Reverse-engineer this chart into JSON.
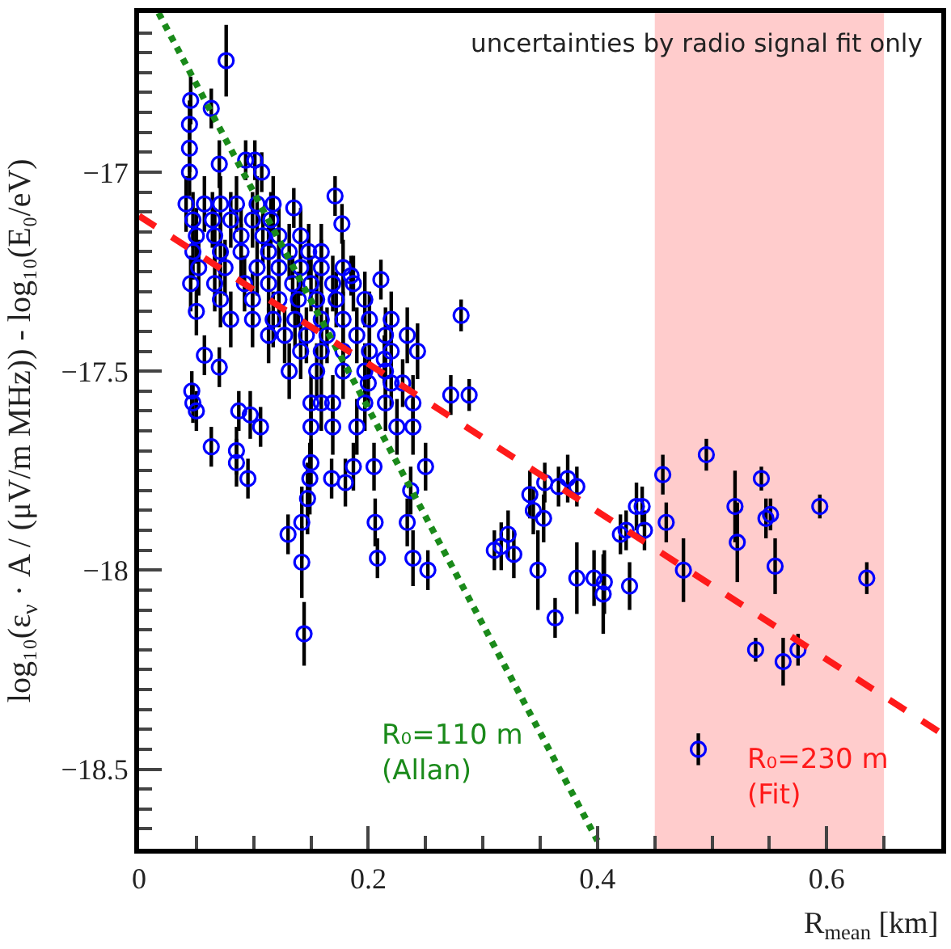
{
  "chart_data": {
    "type": "scatter",
    "xlabel": "R$_{mean}$ [km]",
    "ylabel": "log₁₀(ε$_{ν}$ · A / (μV/m MHz)) - log₁₀(E₀/eV)",
    "annotations": [
      "uncertainties by radio signal fit only"
    ],
    "xlim": [
      0,
      0.7
    ],
    "xticks": [
      0,
      0.2,
      0.4,
      0.6
    ],
    "ylim": [
      -18.7,
      -16.6
    ],
    "yticks": [
      {
        "value": -17,
        "label": "−17"
      },
      {
        "value": -17.5,
        "label": "−17.5"
      },
      {
        "value": -18,
        "label": "−18"
      },
      {
        "value": -18.5,
        "label": "−18.5"
      }
    ],
    "grid": false,
    "bands": [
      {
        "axis": "x",
        "from": 0.45,
        "to": 0.65,
        "color": "#ffcccc"
      }
    ],
    "series": [
      {
        "color": "#0000ff",
        "marker": "circle",
        "x": [
          0.076,
          0.045,
          0.063,
          0.044,
          0.044,
          0.044,
          0.07,
          0.093,
          0.101,
          0.107,
          0.171,
          0.177,
          0.135,
          0.281,
          0.185,
          0.211,
          0.05,
          0.057,
          0.07,
          0.046,
          0.047,
          0.05,
          0.087,
          0.097,
          0.106,
          0.063,
          0.085,
          0.15,
          0.25,
          0.288,
          0.272,
          0.2,
          0.22,
          0.23,
          0.214,
          0.085,
          0.095,
          0.149,
          0.147,
          0.142,
          0.13,
          0.142,
          0.144,
          0.168,
          0.18,
          0.187,
          0.205,
          0.206,
          0.208,
          0.234,
          0.237,
          0.239,
          0.252,
          0.341,
          0.344,
          0.353,
          0.348,
          0.363,
          0.354,
          0.366,
          0.374,
          0.382,
          0.31,
          0.316,
          0.322,
          0.327,
          0.382,
          0.397,
          0.405,
          0.406,
          0.428,
          0.42,
          0.425,
          0.434,
          0.439,
          0.441,
          0.457,
          0.46,
          0.475,
          0.495,
          0.488,
          0.52,
          0.522,
          0.543,
          0.547,
          0.551,
          0.555,
          0.538,
          0.562,
          0.575,
          0.594,
          0.635,
          0.041,
          0.057,
          0.071,
          0.085,
          0.103,
          0.117,
          0.047,
          0.064,
          0.08,
          0.099,
          0.115,
          0.05,
          0.066,
          0.089,
          0.108,
          0.122,
          0.141,
          0.047,
          0.071,
          0.089,
          0.113,
          0.131,
          0.148,
          0.159,
          0.052,
          0.075,
          0.103,
          0.122,
          0.141,
          0.159,
          0.178,
          0.045,
          0.066,
          0.092,
          0.113,
          0.134,
          0.15,
          0.169,
          0.187,
          0.071,
          0.099,
          0.122,
          0.139,
          0.155,
          0.172,
          0.197,
          0.08,
          0.099,
          0.117,
          0.136,
          0.159,
          0.178,
          0.201,
          0.22,
          0.113,
          0.127,
          0.146,
          0.164,
          0.19,
          0.215,
          0.234,
          0.141,
          0.159,
          0.178,
          0.201,
          0.22,
          0.243,
          0.131,
          0.155,
          0.178,
          0.197,
          0.215,
          0.15,
          0.159,
          0.169,
          0.197,
          0.215,
          0.239,
          0.15,
          0.169,
          0.19,
          0.225,
          0.239
        ],
        "values": [
          -16.72,
          -16.82,
          -16.84,
          -16.88,
          -16.94,
          -17.0,
          -16.98,
          -16.97,
          -16.97,
          -17.0,
          -17.06,
          -17.13,
          -17.09,
          -17.36,
          -17.26,
          -17.27,
          -17.35,
          -17.46,
          -17.49,
          -17.55,
          -17.58,
          -17.6,
          -17.6,
          -17.61,
          -17.64,
          -17.69,
          -17.7,
          -17.73,
          -17.74,
          -17.56,
          -17.56,
          -17.53,
          -17.53,
          -17.53,
          -17.47,
          -17.73,
          -17.77,
          -17.77,
          -17.82,
          -17.88,
          -17.91,
          -17.98,
          -18.16,
          -17.77,
          -17.78,
          -17.74,
          -17.74,
          -17.88,
          -17.97,
          -17.88,
          -17.8,
          -17.97,
          -18.0,
          -17.81,
          -17.85,
          -17.87,
          -18.0,
          -18.12,
          -17.78,
          -17.79,
          -17.77,
          -17.79,
          -17.95,
          -17.94,
          -17.91,
          -17.96,
          -18.02,
          -18.02,
          -18.06,
          -18.03,
          -18.04,
          -17.91,
          -17.9,
          -17.84,
          -17.84,
          -17.9,
          -17.76,
          -17.88,
          -18.0,
          -17.71,
          -18.45,
          -17.84,
          -17.93,
          -17.77,
          -17.87,
          -17.86,
          -17.99,
          -18.2,
          -18.23,
          -18.2,
          -17.84,
          -18.02,
          -17.08,
          -17.08,
          -17.08,
          -17.08,
          -17.08,
          -17.08,
          -17.12,
          -17.12,
          -17.12,
          -17.12,
          -17.12,
          -17.16,
          -17.16,
          -17.16,
          -17.16,
          -17.16,
          -17.16,
          -17.2,
          -17.2,
          -17.2,
          -17.2,
          -17.2,
          -17.2,
          -17.2,
          -17.24,
          -17.24,
          -17.24,
          -17.24,
          -17.24,
          -17.24,
          -17.24,
          -17.28,
          -17.28,
          -17.28,
          -17.28,
          -17.28,
          -17.28,
          -17.28,
          -17.28,
          -17.32,
          -17.32,
          -17.32,
          -17.32,
          -17.32,
          -17.32,
          -17.32,
          -17.37,
          -17.37,
          -17.37,
          -17.37,
          -17.37,
          -17.37,
          -17.37,
          -17.37,
          -17.41,
          -17.41,
          -17.41,
          -17.41,
          -17.41,
          -17.41,
          -17.41,
          -17.45,
          -17.45,
          -17.45,
          -17.45,
          -17.45,
          -17.45,
          -17.5,
          -17.5,
          -17.5,
          -17.5,
          -17.5,
          -17.58,
          -17.58,
          -17.58,
          -17.58,
          -17.58,
          -17.58,
          -17.64,
          -17.64,
          -17.64,
          -17.64,
          -17.64
        ],
        "errors": [
          0.09,
          0.06,
          0.05,
          0.06,
          0.06,
          0.06,
          0.06,
          0.05,
          0.05,
          0.05,
          0.05,
          0.05,
          0.05,
          0.04,
          0.05,
          0.05,
          0.06,
          0.05,
          0.05,
          0.05,
          0.05,
          0.05,
          0.05,
          0.06,
          0.05,
          0.05,
          0.06,
          0.06,
          0.06,
          0.04,
          0.05,
          0.06,
          0.06,
          0.06,
          0.06,
          0.06,
          0.05,
          0.09,
          0.09,
          0.09,
          0.05,
          0.09,
          0.08,
          0.05,
          0.06,
          0.06,
          0.06,
          0.06,
          0.05,
          0.06,
          0.06,
          0.07,
          0.05,
          0.06,
          0.06,
          0.06,
          0.1,
          0.05,
          0.05,
          0.05,
          0.06,
          0.05,
          0.05,
          0.06,
          0.06,
          0.06,
          0.09,
          0.07,
          0.1,
          0.08,
          0.06,
          0.05,
          0.05,
          0.06,
          0.05,
          0.05,
          0.05,
          0.05,
          0.08,
          0.04,
          0.04,
          0.09,
          0.1,
          0.03,
          0.05,
          0.04,
          0.07,
          0.03,
          0.06,
          0.04,
          0.03,
          0.04,
          0.07,
          0.07,
          0.07,
          0.07,
          0.07,
          0.07,
          0.07,
          0.07,
          0.07,
          0.07,
          0.07,
          0.07,
          0.07,
          0.07,
          0.07,
          0.07,
          0.07,
          0.07,
          0.07,
          0.07,
          0.07,
          0.07,
          0.07,
          0.07,
          0.07,
          0.07,
          0.07,
          0.07,
          0.07,
          0.07,
          0.07,
          0.07,
          0.07,
          0.07,
          0.07,
          0.07,
          0.07,
          0.07,
          0.07,
          0.07,
          0.07,
          0.07,
          0.07,
          0.07,
          0.07,
          0.07,
          0.07,
          0.07,
          0.07,
          0.07,
          0.07,
          0.07,
          0.07,
          0.07,
          0.07,
          0.07,
          0.07,
          0.07,
          0.07,
          0.07,
          0.07,
          0.07,
          0.07,
          0.07,
          0.07,
          0.07,
          0.07,
          0.07,
          0.07,
          0.07,
          0.07,
          0.07,
          0.07,
          0.07,
          0.07,
          0.07,
          0.07,
          0.07,
          0.07,
          0.07,
          0.07,
          0.07,
          0.07
        ]
      },
      {
        "type": "line",
        "name": "R₀=110 m\n(Allan)",
        "color": "#1a8a1a",
        "line_style": "dotted",
        "x": [
          0.017,
          0.4
        ],
        "values": [
          -16.6,
          -18.68
        ]
      },
      {
        "type": "line",
        "name": "R₀=230 m\n(Fit)",
        "color": "#ff1a1a",
        "line_style": "dashed",
        "x": [
          0,
          0.7
        ],
        "values": [
          -17.11,
          -18.41
        ]
      }
    ]
  }
}
